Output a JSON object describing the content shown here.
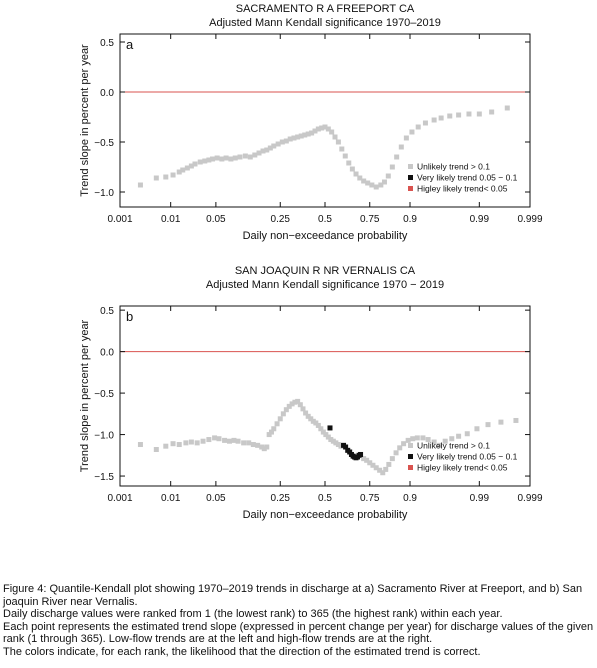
{
  "chart_data": [
    {
      "type": "scatter",
      "title": "SACRAMENTO R A FREEPORT CA",
      "subtitle": "Adjusted Mann Kendall significance    1970–2019",
      "panel_label": "a",
      "xlabel": "Daily non−exceedance probability",
      "ylabel": "Trend slope in percent per year",
      "x_scale": "normal-probability",
      "x_ticks": [
        0.001,
        0.01,
        0.05,
        0.25,
        0.5,
        0.75,
        0.9,
        0.99,
        0.999
      ],
      "x_tick_labels": [
        "0.001",
        "0.01",
        "0.05",
        "0.25",
        "0.5",
        "0.75",
        "0.9",
        "0.99",
        "0.999"
      ],
      "y_ticks": [
        -1.0,
        -0.5,
        0.0,
        0.5
      ],
      "y_tick_labels": [
        "−1.0",
        "−0.5",
        "0.0",
        "0.5"
      ],
      "ylim": [
        -1.15,
        0.58
      ],
      "reference_line": {
        "y": 0,
        "color": "#d9534f"
      },
      "legend": {
        "position": "bottom-right",
        "entries": [
          {
            "label": "Unlikely trend > 0.1",
            "color": "#c8c8c8"
          },
          {
            "label": "Very likely trend 0.05 − 0.1",
            "color": "#111111"
          },
          {
            "label": "Higley likely trend< 0.05",
            "color": "#d9534f"
          }
        ]
      },
      "series": [
        {
          "category": "unlikely",
          "color": "#c8c8c8",
          "points": [
            [
              0.0027,
              -0.93
            ],
            [
              0.0055,
              -0.86
            ],
            [
              0.0082,
              -0.85
            ],
            [
              0.011,
              -0.83
            ],
            [
              0.014,
              -0.8
            ],
            [
              0.016,
              -0.78
            ],
            [
              0.019,
              -0.76
            ],
            [
              0.022,
              -0.74
            ],
            [
              0.025,
              -0.72
            ],
            [
              0.03,
              -0.7
            ],
            [
              0.035,
              -0.69
            ],
            [
              0.04,
              -0.68
            ],
            [
              0.045,
              -0.67
            ],
            [
              0.052,
              -0.66
            ],
            [
              0.06,
              -0.67
            ],
            [
              0.068,
              -0.66
            ],
            [
              0.078,
              -0.67
            ],
            [
              0.088,
              -0.66
            ],
            [
              0.1,
              -0.65
            ],
            [
              0.115,
              -0.64
            ],
            [
              0.13,
              -0.65
            ],
            [
              0.145,
              -0.63
            ],
            [
              0.16,
              -0.61
            ],
            [
              0.175,
              -0.59
            ],
            [
              0.19,
              -0.58
            ],
            [
              0.205,
              -0.56
            ],
            [
              0.22,
              -0.54
            ],
            [
              0.24,
              -0.52
            ],
            [
              0.26,
              -0.5
            ],
            [
              0.28,
              -0.49
            ],
            [
              0.3,
              -0.47
            ],
            [
              0.32,
              -0.46
            ],
            [
              0.34,
              -0.45
            ],
            [
              0.36,
              -0.44
            ],
            [
              0.38,
              -0.43
            ],
            [
              0.4,
              -0.42
            ],
            [
              0.42,
              -0.41
            ],
            [
              0.44,
              -0.39
            ],
            [
              0.46,
              -0.37
            ],
            [
              0.48,
              -0.36
            ],
            [
              0.5,
              -0.35
            ],
            [
              0.52,
              -0.37
            ],
            [
              0.54,
              -0.4
            ],
            [
              0.56,
              -0.45
            ],
            [
              0.58,
              -0.5
            ],
            [
              0.6,
              -0.57
            ],
            [
              0.62,
              -0.64
            ],
            [
              0.64,
              -0.71
            ],
            [
              0.66,
              -0.77
            ],
            [
              0.68,
              -0.82
            ],
            [
              0.7,
              -0.86
            ],
            [
              0.72,
              -0.89
            ],
            [
              0.74,
              -0.91
            ],
            [
              0.76,
              -0.93
            ],
            [
              0.78,
              -0.95
            ],
            [
              0.8,
              -0.93
            ],
            [
              0.815,
              -0.9
            ],
            [
              0.83,
              -0.84
            ],
            [
              0.845,
              -0.75
            ],
            [
              0.86,
              -0.65
            ],
            [
              0.875,
              -0.55
            ],
            [
              0.89,
              -0.46
            ],
            [
              0.905,
              -0.4
            ],
            [
              0.92,
              -0.35
            ],
            [
              0.935,
              -0.31
            ],
            [
              0.95,
              -0.28
            ],
            [
              0.96,
              -0.26
            ],
            [
              0.97,
              -0.24
            ],
            [
              0.978,
              -0.23
            ],
            [
              0.985,
              -0.22
            ],
            [
              0.99,
              -0.22
            ],
            [
              0.994,
              -0.2
            ],
            [
              0.997,
              -0.16
            ]
          ]
        },
        {
          "category": "very_likely",
          "color": "#111111",
          "points": []
        },
        {
          "category": "highly_likely",
          "color": "#d9534f",
          "points": []
        }
      ]
    },
    {
      "type": "scatter",
      "title": "SAN JOAQUIN R NR VERNALIS CA",
      "subtitle": "Adjusted Mann Kendall significance  1970 − 2019",
      "panel_label": "b",
      "xlabel": "Daily non−exceedance probability",
      "ylabel": "Trend slope in percent per year",
      "x_scale": "normal-probability",
      "x_ticks": [
        0.001,
        0.01,
        0.05,
        0.25,
        0.5,
        0.75,
        0.9,
        0.99,
        0.999
      ],
      "x_tick_labels": [
        "0.001",
        "0.01",
        "0.05",
        "0.25",
        "0.5",
        "0.75",
        "0.9",
        "0.99",
        "0.999"
      ],
      "y_ticks": [
        -1.5,
        -1.0,
        -0.5,
        0.0,
        0.5
      ],
      "y_tick_labels": [
        "−1.5",
        "−1.0",
        "−0.5",
        "0.0",
        "0.5"
      ],
      "ylim": [
        -1.62,
        0.55
      ],
      "reference_line": {
        "y": 0,
        "color": "#d9534f"
      },
      "legend": {
        "position": "bottom-right",
        "entries": [
          {
            "label": "Unlikely trend > 0.1",
            "color": "#c8c8c8"
          },
          {
            "label": "Very likely trend 0.05 − 0.1",
            "color": "#111111"
          },
          {
            "label": "Higley likely trend< 0.05",
            "color": "#d9534f"
          }
        ]
      },
      "series": [
        {
          "category": "unlikely",
          "color": "#c8c8c8",
          "points": [
            [
              0.0027,
              -1.12
            ],
            [
              0.0055,
              -1.18
            ],
            [
              0.0082,
              -1.14
            ],
            [
              0.011,
              -1.11
            ],
            [
              0.014,
              -1.12
            ],
            [
              0.018,
              -1.1
            ],
            [
              0.022,
              -1.09
            ],
            [
              0.027,
              -1.1
            ],
            [
              0.033,
              -1.08
            ],
            [
              0.04,
              -1.06
            ],
            [
              0.048,
              -1.04
            ],
            [
              0.055,
              -1.05
            ],
            [
              0.065,
              -1.07
            ],
            [
              0.075,
              -1.08
            ],
            [
              0.085,
              -1.07
            ],
            [
              0.095,
              -1.08
            ],
            [
              0.11,
              -1.1
            ],
            [
              0.125,
              -1.1
            ],
            [
              0.14,
              -1.12
            ],
            [
              0.155,
              -1.13
            ],
            [
              0.17,
              -1.15
            ],
            [
              0.18,
              -1.17
            ],
            [
              0.19,
              -1.15
            ],
            [
              0.2,
              -1.0
            ],
            [
              0.21,
              -0.97
            ],
            [
              0.22,
              -0.93
            ],
            [
              0.235,
              -0.87
            ],
            [
              0.25,
              -0.81
            ],
            [
              0.265,
              -0.75
            ],
            [
              0.28,
              -0.7
            ],
            [
              0.295,
              -0.66
            ],
            [
              0.31,
              -0.63
            ],
            [
              0.325,
              -0.61
            ],
            [
              0.34,
              -0.6
            ],
            [
              0.355,
              -0.64
            ],
            [
              0.37,
              -0.69
            ],
            [
              0.385,
              -0.74
            ],
            [
              0.4,
              -0.78
            ],
            [
              0.415,
              -0.81
            ],
            [
              0.43,
              -0.84
            ],
            [
              0.445,
              -0.86
            ],
            [
              0.46,
              -0.89
            ],
            [
              0.475,
              -0.93
            ],
            [
              0.49,
              -0.97
            ],
            [
              0.505,
              -1.0
            ],
            [
              0.52,
              -1.03
            ],
            [
              0.535,
              -1.06
            ],
            [
              0.55,
              -1.08
            ],
            [
              0.565,
              -1.1
            ],
            [
              0.58,
              -1.12
            ],
            [
              0.595,
              -1.14
            ],
            [
              0.72,
              -1.29
            ],
            [
              0.735,
              -1.31
            ],
            [
              0.75,
              -1.34
            ],
            [
              0.765,
              -1.37
            ],
            [
              0.78,
              -1.4
            ],
            [
              0.795,
              -1.43
            ],
            [
              0.808,
              -1.46
            ],
            [
              0.82,
              -1.42
            ],
            [
              0.832,
              -1.36
            ],
            [
              0.845,
              -1.29
            ],
            [
              0.858,
              -1.22
            ],
            [
              0.87,
              -1.16
            ],
            [
              0.882,
              -1.11
            ],
            [
              0.895,
              -1.07
            ],
            [
              0.907,
              -1.05
            ],
            [
              0.918,
              -1.04
            ],
            [
              0.93,
              -1.04
            ],
            [
              0.94,
              -1.06
            ],
            [
              0.95,
              -1.09
            ],
            [
              0.958,
              -1.13
            ],
            [
              0.965,
              -1.08
            ],
            [
              0.972,
              -1.05
            ],
            [
              0.978,
              -1.02
            ],
            [
              0.984,
              -0.99
            ],
            [
              0.989,
              -0.93
            ],
            [
              0.993,
              -0.88
            ],
            [
              0.996,
              -0.85
            ],
            [
              0.998,
              -0.83
            ]
          ]
        },
        {
          "category": "very_likely",
          "color": "#111111",
          "points": [
            [
              0.53,
              -0.92
            ],
            [
              0.61,
              -1.13
            ],
            [
              0.622,
              -1.15
            ],
            [
              0.634,
              -1.19
            ],
            [
              0.645,
              -1.21
            ],
            [
              0.655,
              -1.24
            ],
            [
              0.664,
              -1.26
            ],
            [
              0.672,
              -1.27
            ],
            [
              0.68,
              -1.28
            ],
            [
              0.688,
              -1.27
            ],
            [
              0.696,
              -1.25
            ],
            [
              0.704,
              -1.24
            ]
          ]
        },
        {
          "category": "highly_likely",
          "color": "#d9534f",
          "points": []
        }
      ]
    }
  ],
  "caption": {
    "lines": [
      "Figure 4: Quantile-Kendall plot showing 1970–2019 trends in discharge at a) Sacramento River at Freeport, and b) San joaquin River near Vernalis.",
      "Daily discharge values were ranked from 1 (the lowest rank) to 365 (the highest rank) within each year.",
      "Each point represents the estimated trend slope (expressed in percent change per year) for discharge values of the given rank (1 through 365). Low-flow trends are at the left and high-flow trends are at the right.",
      "The colors indicate, for each rank, the likelihood that the direction of the estimated trend is correct."
    ]
  }
}
